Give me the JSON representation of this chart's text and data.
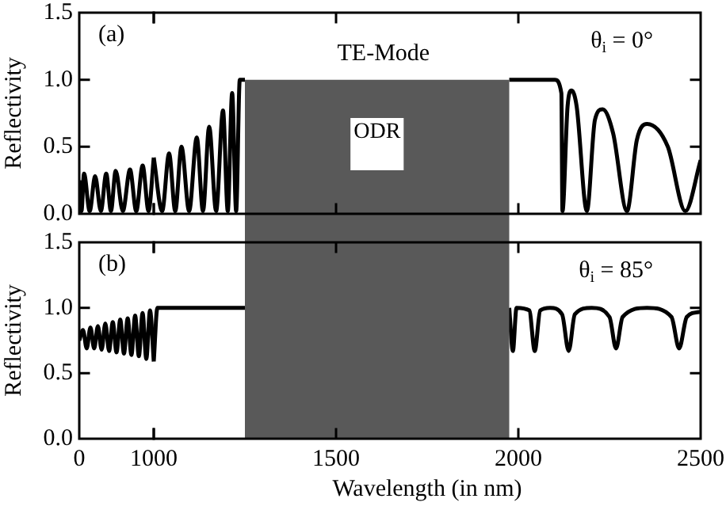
{
  "chart_data": [
    {
      "type": "line",
      "ylabel": "Reflectivity",
      "annotations": [
        "(a)"
      ],
      "x": [
        0,
        30,
        64,
        140,
        213,
        290,
        362,
        425,
        489,
        585,
        681,
        765,
        851,
        930,
        1000
      ],
      "series": [
        {
          "color": "#000000",
          "values": [
            0.25,
            0.02,
            0.3,
            0.02,
            0.28,
            0.02,
            0.3,
            0.02,
            0.32,
            0.02,
            0.33,
            0.02,
            0.36,
            0.02,
            0.42
          ]
        }
      ],
      "xlim": [
        0,
        1000
      ],
      "xticks": [
        0,
        1000
      ],
      "ylim": [
        0,
        1.5
      ],
      "yticks": [
        {
          "value": 0,
          "label": "0.0"
        },
        {
          "value": 0.5,
          "label": "0.5"
        },
        {
          "value": 1,
          "label": "1.0"
        },
        {
          "value": 1.5,
          "label": "1.5"
        }
      ],
      "tick_labels": "y"
    },
    {
      "type": "line",
      "annotations": [
        "TE-Mode",
        "θ$_{i}$ = 0°"
      ],
      "x": [
        1000,
        1023,
        1042,
        1059,
        1076,
        1097,
        1118,
        1135,
        1152,
        1171,
        1190,
        1203,
        1215,
        1226,
        1236,
        1250,
        1600,
        1975,
        2100,
        2118,
        2121,
        2135,
        2146,
        2160,
        2188,
        2210,
        2231,
        2260,
        2298,
        2325,
        2353,
        2410,
        2458,
        2500
      ],
      "series": [
        {
          "color": "#000000",
          "values": [
            0.42,
            0.02,
            0.45,
            0.02,
            0.5,
            0.02,
            0.57,
            0.02,
            0.65,
            0.02,
            0.77,
            0.02,
            0.9,
            0.02,
            1.0,
            1.0,
            null,
            1.0,
            1.0,
            0.9,
            0.02,
            0.8,
            0.92,
            0.8,
            0.02,
            0.7,
            0.78,
            0.6,
            0.02,
            0.55,
            0.67,
            0.5,
            0.02,
            0.4
          ]
        }
      ],
      "xlim": [
        1000,
        2500
      ],
      "xticks": [
        {
          "value": 1000,
          "label": null
        },
        {
          "value": 1500,
          "label": null
        },
        {
          "value": 2000,
          "label": null
        },
        {
          "value": 2500,
          "label": null
        }
      ],
      "ylim": [
        0,
        1.5
      ],
      "yticks": [
        {
          "value": 0,
          "label": null
        },
        {
          "value": 0.5,
          "label": null
        },
        {
          "value": 1,
          "label": null
        },
        {
          "value": 1.5,
          "label": null
        }
      ],
      "tick_labels": false,
      "bands": [
        {
          "axis": "x",
          "from": 1250,
          "to": 1975,
          "label": "ODR",
          "color": "#595959"
        }
      ]
    },
    {
      "type": "line",
      "ylabel": "Reflectivity",
      "annotations": [
        "(b)"
      ],
      "x": [
        0,
        50,
        100,
        150,
        200,
        250,
        300,
        350,
        400,
        450,
        500,
        550,
        600,
        650,
        700,
        750,
        800,
        850,
        900,
        950,
        1000
      ],
      "series": [
        {
          "color": "#000000",
          "values": [
            0.75,
            0.83,
            0.69,
            0.85,
            0.69,
            0.86,
            0.68,
            0.88,
            0.67,
            0.89,
            0.66,
            0.91,
            0.65,
            0.92,
            0.64,
            0.94,
            0.63,
            0.96,
            0.61,
            0.98,
            0.59
          ]
        }
      ],
      "xlim": [
        0,
        1000
      ],
      "xticks": [
        0,
        1000
      ],
      "ylim": [
        0,
        1.5
      ],
      "yticks": [
        {
          "value": 0,
          "label": "0.0"
        },
        {
          "value": 0.5,
          "label": "0.5"
        },
        {
          "value": 1,
          "label": "1.0"
        },
        {
          "value": 1.5,
          "label": "1.5"
        }
      ]
    },
    {
      "type": "line",
      "xlabel": "Wavelength (in nm)",
      "annotations": [
        "θ$_{i}$ = 85°"
      ],
      "x": [
        1000,
        1010,
        1250,
        1600,
        1975,
        1985,
        1995,
        2030,
        2045,
        2060,
        2087,
        2120,
        2138,
        2155,
        2201,
        2250,
        2268,
        2286,
        2353,
        2420,
        2441,
        2462,
        2500
      ],
      "series": [
        {
          "color": "#000000",
          "values": [
            0.59,
            1.0,
            1.0,
            null,
            1.0,
            0.67,
            1.0,
            0.98,
            0.67,
            0.98,
            1.0,
            0.95,
            0.67,
            0.95,
            1.0,
            0.93,
            0.69,
            0.93,
            1.0,
            0.93,
            0.69,
            0.93,
            0.97
          ]
        }
      ],
      "xlim": [
        1000,
        2500
      ],
      "xticks": [
        {
          "value": 1000,
          "label": null
        },
        1500,
        2000,
        2500
      ],
      "ylim": [
        0,
        1.5
      ],
      "yticks": [
        {
          "value": 0,
          "label": null
        },
        {
          "value": 0.5,
          "label": null
        },
        {
          "value": 1,
          "label": null
        },
        {
          "value": 1.5,
          "label": null
        }
      ],
      "tick_labels": "x",
      "bands": [
        {
          "axis": "x",
          "from": 1250,
          "to": 1975,
          "color": "#595959"
        }
      ]
    }
  ]
}
